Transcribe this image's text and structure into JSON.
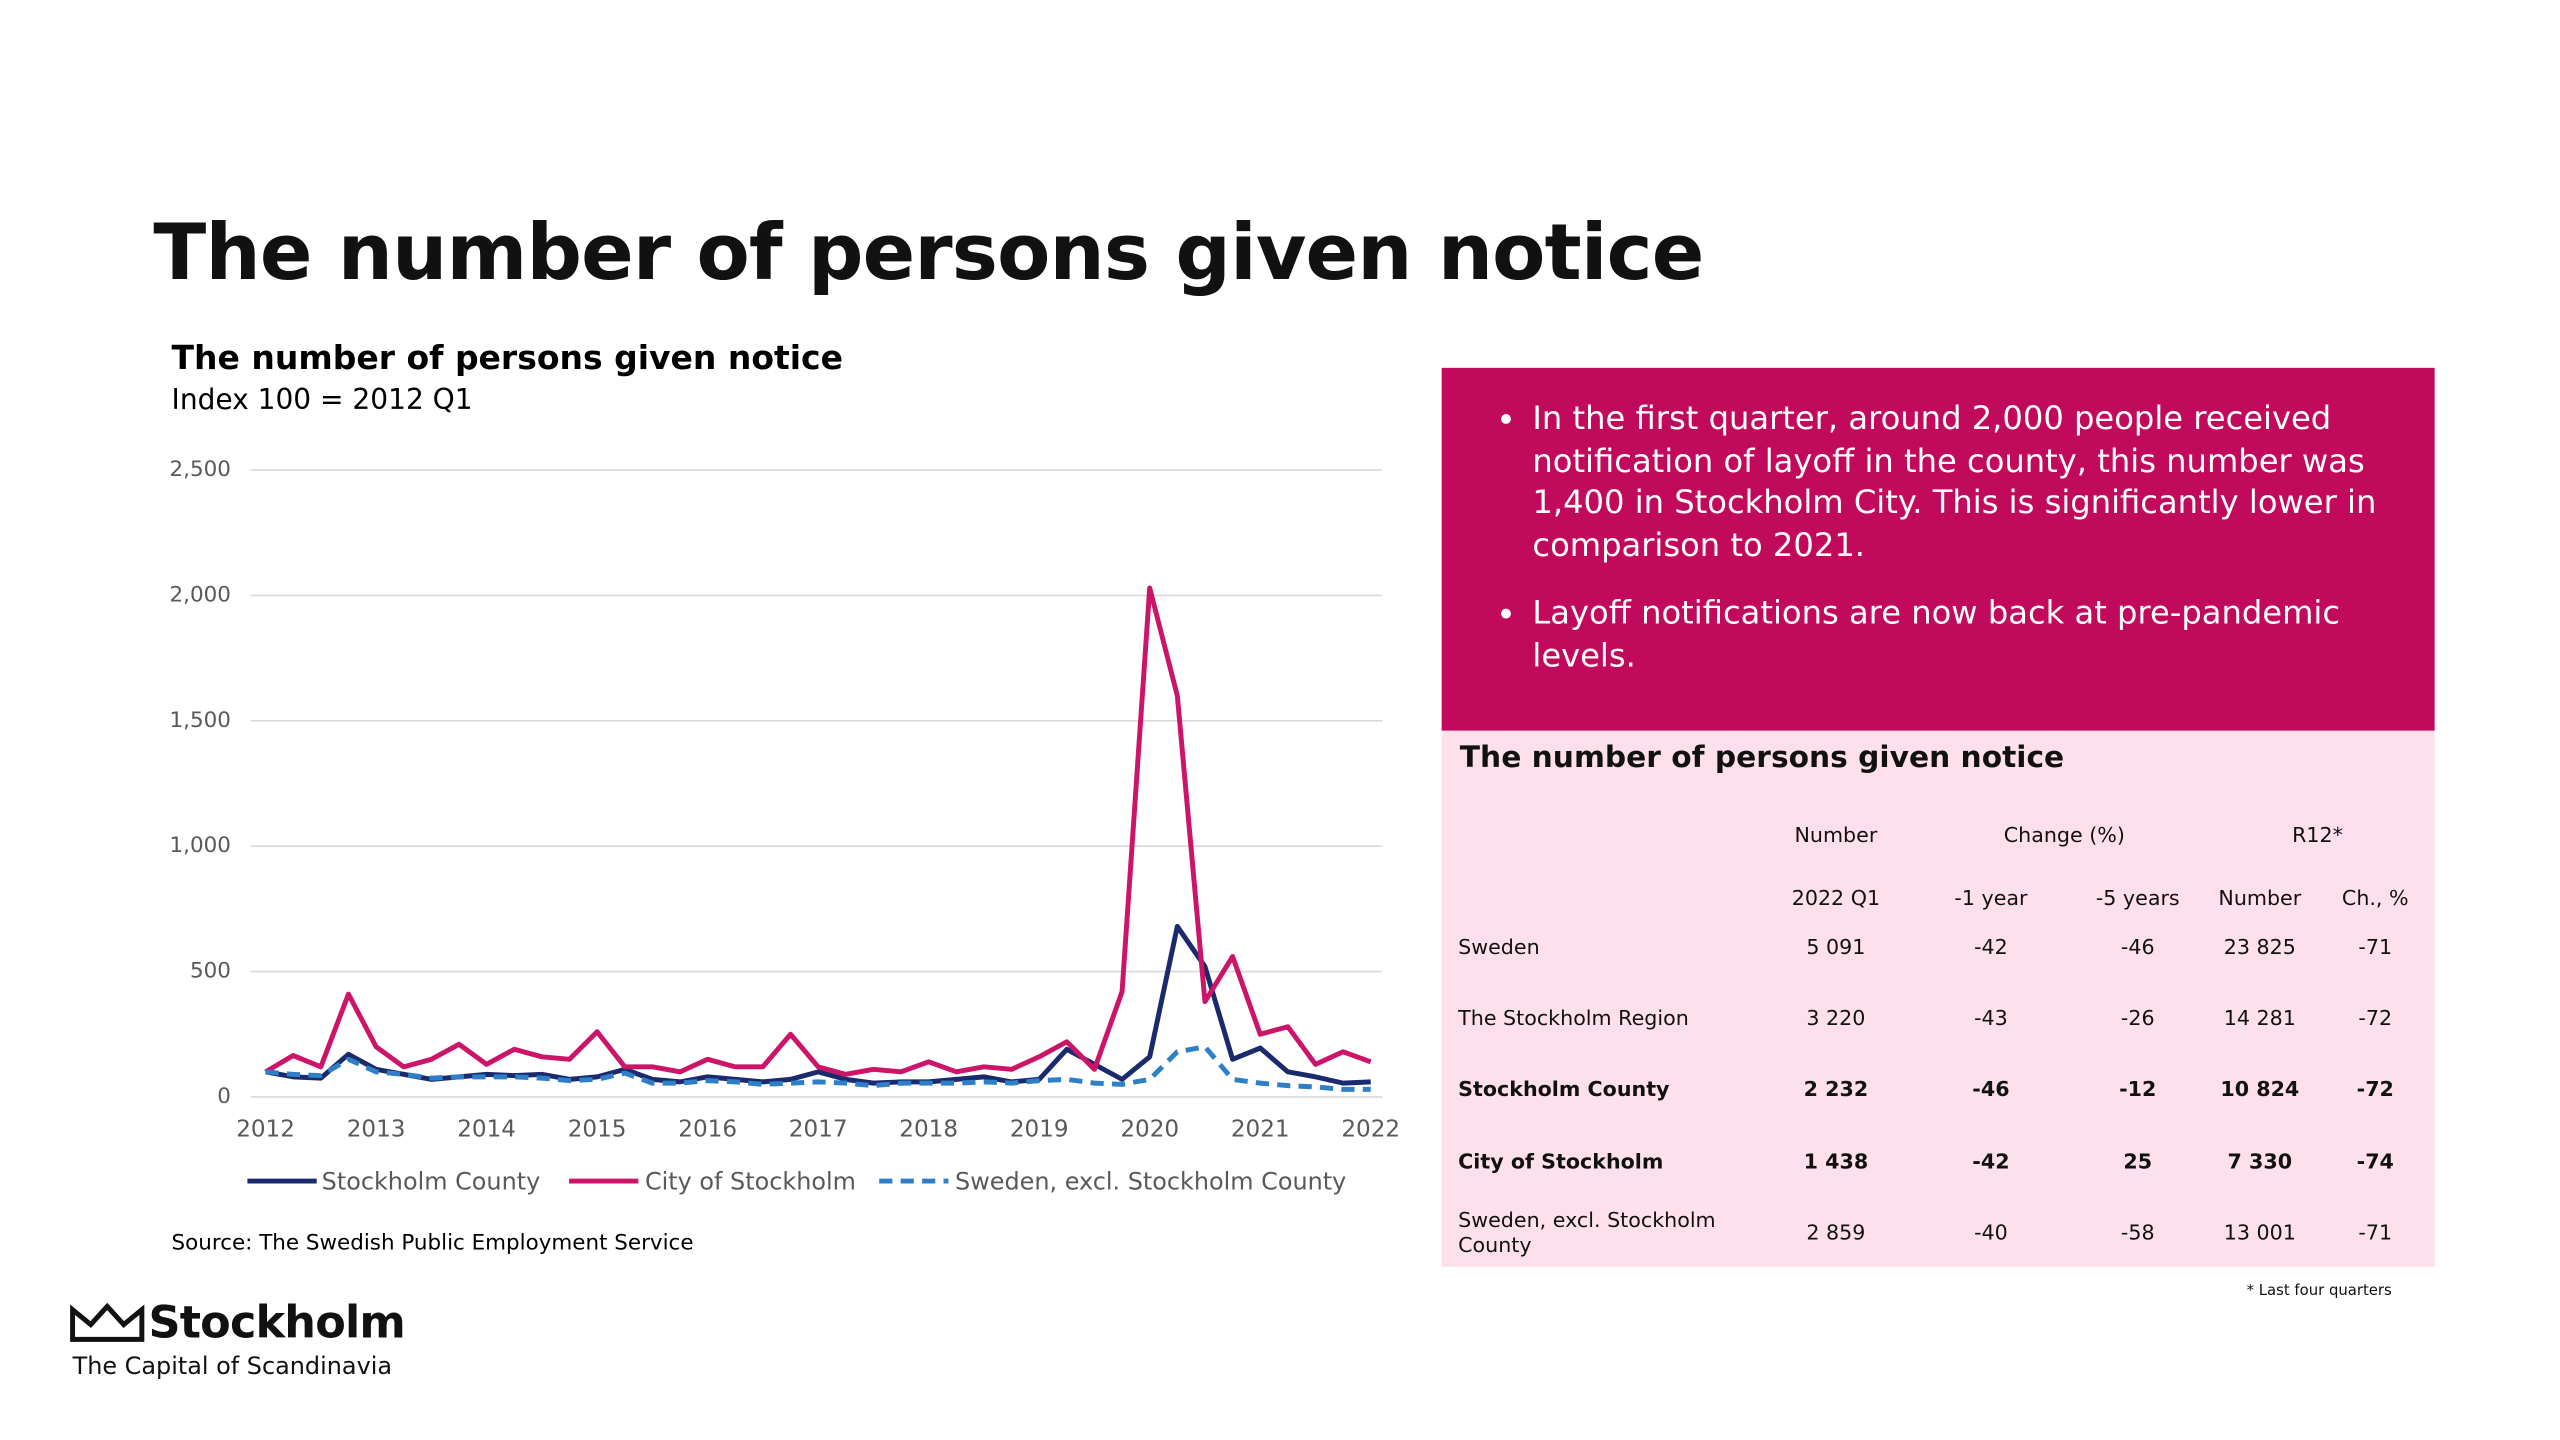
{
  "title": "The number of persons given notice",
  "chart_data": {
    "type": "line",
    "title": "The number of persons given notice",
    "subtitle": "Index 100 = 2012 Q1",
    "categories": [
      "2012",
      null,
      null,
      null,
      "2013",
      null,
      null,
      null,
      "2014",
      null,
      null,
      null,
      "2015",
      null,
      null,
      null,
      "2016",
      null,
      null,
      null,
      "2017",
      null,
      null,
      null,
      "2018",
      null,
      null,
      null,
      "2019",
      null,
      null,
      null,
      "2020",
      null,
      null,
      null,
      "2021",
      null,
      null,
      null,
      "2022"
    ],
    "series": [
      {
        "name": "Stockholm County",
        "color": "#1a2a6c",
        "style": "solid",
        "values": [
          100,
          80,
          75,
          170,
          110,
          90,
          70,
          80,
          90,
          85,
          90,
          70,
          80,
          110,
          70,
          60,
          80,
          70,
          60,
          70,
          100,
          70,
          55,
          60,
          60,
          70,
          80,
          60,
          70,
          190,
          130,
          70,
          160,
          680,
          520,
          150,
          195,
          100,
          80,
          55,
          60
        ]
      },
      {
        "name": "City of Stockholm",
        "color": "#cc1468",
        "style": "solid",
        "values": [
          100,
          165,
          120,
          410,
          200,
          120,
          150,
          210,
          130,
          190,
          160,
          150,
          260,
          120,
          120,
          100,
          150,
          120,
          120,
          250,
          120,
          90,
          110,
          100,
          140,
          100,
          120,
          110,
          160,
          220,
          110,
          420,
          2030,
          1600,
          380,
          560,
          250,
          280,
          130,
          180,
          140
        ]
      },
      {
        "name": "Sweden, excl. Stockholm County",
        "color": "#2f7fc8",
        "style": "dashed",
        "values": [
          100,
          90,
          85,
          150,
          100,
          90,
          75,
          80,
          80,
          80,
          75,
          65,
          70,
          95,
          55,
          55,
          65,
          60,
          50,
          55,
          60,
          55,
          45,
          55,
          55,
          55,
          60,
          55,
          65,
          70,
          55,
          50,
          70,
          180,
          200,
          70,
          55,
          45,
          40,
          30,
          30
        ]
      }
    ],
    "ylim": [
      0,
      2500
    ],
    "yticks": [
      0,
      500,
      {
        "value": 1000,
        "label": "1,000"
      },
      {
        "value": 1500,
        "label": "1,500"
      },
      {
        "value": 2000,
        "label": "2,000"
      },
      {
        "value": 2500,
        "label": "2,500"
      }
    ],
    "grid": true,
    "legend": "bottom",
    "source": "Source: The Swedish Public Employment Service"
  },
  "highlights": [
    "In the first quarter, around 2,000 people received notification of layoff in the county, this number was 1,400 in Stockholm City. This is significantly lower in comparison to 2021.",
    "Layoff notifications are now back at pre-pandemic levels."
  ],
  "table": {
    "title": "The number of persons given notice",
    "group_headers": [
      "Number",
      "Change (%)",
      "R12*"
    ],
    "sub_headers": [
      "2022 Q1",
      "-1 year",
      "-5 years",
      "Number",
      "Ch., %"
    ],
    "rows": [
      {
        "bold": false,
        "cells": [
          "Sweden",
          "5 091",
          "-42",
          "-46",
          "23 825",
          "-71"
        ]
      },
      {
        "bold": false,
        "cells": [
          "The Stockholm Region",
          "3 220",
          "-43",
          "-26",
          "14 281",
          "-72"
        ]
      },
      {
        "bold": true,
        "cells": [
          "Stockholm County",
          "2 232",
          "-46",
          "-12",
          "10 824",
          "-72"
        ]
      },
      {
        "bold": true,
        "cells": [
          "City of Stockholm",
          "1 438",
          "-42",
          "25",
          "7 330",
          "-74"
        ]
      },
      {
        "bold": false,
        "cells": [
          "Sweden, excl. Stockholm County",
          "2 859",
          "-40",
          "-58",
          "13 001",
          "-71"
        ]
      }
    ],
    "footnote": "* Last four quarters"
  },
  "logo": {
    "name": "Stockholm",
    "tagline": "The Capital of Scandinavia"
  }
}
